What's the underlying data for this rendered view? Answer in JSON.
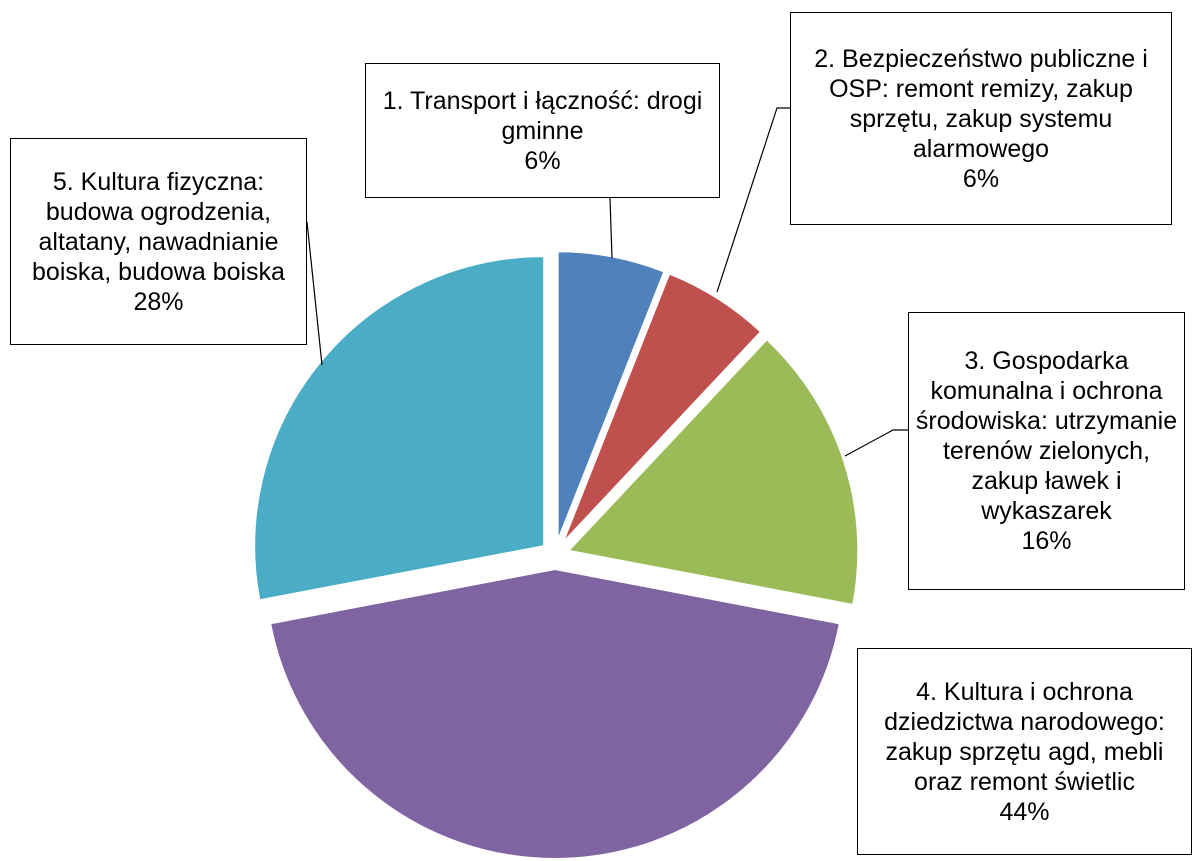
{
  "chart_data": {
    "type": "pie",
    "categories": [
      "1. Transport i łączność: drogi gminne",
      "2. Bezpieczeństwo publiczne i OSP: remont remizy, zakup sprzętu, zakup systemu alarmowego",
      "3. Gospodarka komunalna i ochrona środowiska: utrzymanie terenów zielonych, zakup ławek i wykaszarek",
      "4. Kultura i ochrona dziedzictwa narodowego: zakup sprzętu agd, mebli oraz remont świetlic",
      "5. Kultura fizyczna: budowa ogrodzenia, altatany, nawadnianie boiska, budowa boiska"
    ],
    "values": [
      6,
      6,
      16,
      44,
      28
    ],
    "value_labels": [
      "6%",
      "6%",
      "16%",
      "44%",
      "28%"
    ],
    "colors": [
      "#4f81bd",
      "#c0504d",
      "#9bbb59",
      "#8064a2",
      "#4bacc6"
    ]
  }
}
